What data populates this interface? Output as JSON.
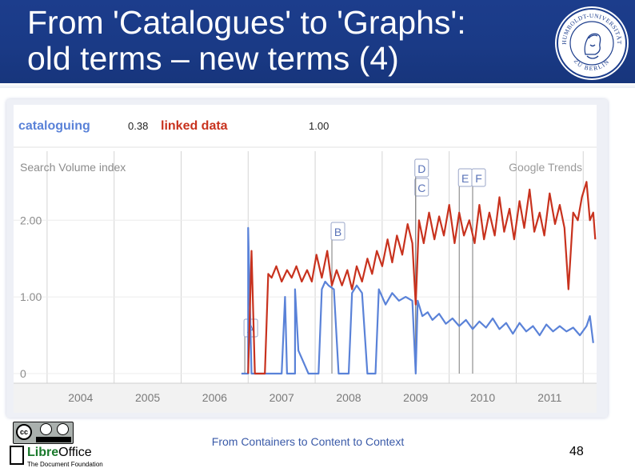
{
  "slide": {
    "title_line1": "From 'Catalogues' to 'Graphs':",
    "title_line2": "old terms – new terms (4)",
    "footer": "From Containers to Content to Context",
    "page_number": "48",
    "seal_text_top": "HUMBOLDT-UNIVERSITÄT",
    "seal_text_bottom": "ZU BERLIN",
    "license_text": "BY SA",
    "office_logo_name_part1": "Libre",
    "office_logo_name_part2": "Office",
    "office_logo_sub": "The Document Foundation"
  },
  "colors": {
    "header_bg": "#1c3d8c",
    "series_cataloguing": "#5a82d8",
    "series_linked_data": "#c8321e",
    "grid": "#d4d4d4"
  },
  "chart_data": {
    "type": "line",
    "legend": [
      {
        "name": "cataloguing",
        "value": "0.38"
      },
      {
        "name": "linked data",
        "value": "1.00"
      }
    ],
    "ylabel": "Search Volume index",
    "watermark": "Google Trends",
    "y_ticks": [
      "0",
      "1.00",
      "2.00"
    ],
    "x_ticks": [
      "2004",
      "2005",
      "2006",
      "2007",
      "2008",
      "2009",
      "2010",
      "2011"
    ],
    "ylim": [
      0,
      2.9
    ],
    "xlim": [
      2003.5,
      2012.2
    ],
    "grid": true,
    "annotations": [
      {
        "label": "A",
        "x": 2006.95
      },
      {
        "label": "B",
        "x": 2008.25
      },
      {
        "label": "C",
        "x": 2009.5
      },
      {
        "label": "D",
        "x": 2009.5
      },
      {
        "label": "E",
        "x": 2010.15
      },
      {
        "label": "F",
        "x": 2010.35
      }
    ],
    "series": [
      {
        "name": "cataloguing",
        "points": [
          [
            2006.9,
            0
          ],
          [
            2007.0,
            0
          ],
          [
            2007.0,
            1.9
          ],
          [
            2007.05,
            0
          ],
          [
            2007.2,
            0
          ],
          [
            2007.3,
            0
          ],
          [
            2007.5,
            0
          ],
          [
            2007.55,
            1.0
          ],
          [
            2007.58,
            0
          ],
          [
            2007.7,
            0
          ],
          [
            2007.7,
            1.1
          ],
          [
            2007.75,
            0.3
          ],
          [
            2007.9,
            0
          ],
          [
            2008.05,
            0
          ],
          [
            2008.1,
            1.1
          ],
          [
            2008.15,
            1.2
          ],
          [
            2008.2,
            1.15
          ],
          [
            2008.28,
            1.1
          ],
          [
            2008.35,
            0
          ],
          [
            2008.5,
            0
          ],
          [
            2008.55,
            1.05
          ],
          [
            2008.62,
            1.15
          ],
          [
            2008.7,
            1.05
          ],
          [
            2008.78,
            0
          ],
          [
            2008.9,
            0
          ],
          [
            2008.95,
            1.1
          ],
          [
            2009.05,
            0.9
          ],
          [
            2009.15,
            1.05
          ],
          [
            2009.25,
            0.95
          ],
          [
            2009.35,
            1.0
          ],
          [
            2009.45,
            0.95
          ],
          [
            2009.5,
            0
          ],
          [
            2009.53,
            0.95
          ],
          [
            2009.6,
            0.75
          ],
          [
            2009.68,
            0.8
          ],
          [
            2009.75,
            0.7
          ],
          [
            2009.85,
            0.78
          ],
          [
            2009.95,
            0.65
          ],
          [
            2010.05,
            0.72
          ],
          [
            2010.15,
            0.62
          ],
          [
            2010.25,
            0.7
          ],
          [
            2010.35,
            0.58
          ],
          [
            2010.45,
            0.68
          ],
          [
            2010.55,
            0.6
          ],
          [
            2010.65,
            0.72
          ],
          [
            2010.75,
            0.58
          ],
          [
            2010.85,
            0.66
          ],
          [
            2010.95,
            0.52
          ],
          [
            2011.05,
            0.66
          ],
          [
            2011.15,
            0.55
          ],
          [
            2011.25,
            0.62
          ],
          [
            2011.35,
            0.5
          ],
          [
            2011.45,
            0.64
          ],
          [
            2011.55,
            0.55
          ],
          [
            2011.65,
            0.62
          ],
          [
            2011.75,
            0.55
          ],
          [
            2011.85,
            0.6
          ],
          [
            2011.95,
            0.5
          ],
          [
            2012.05,
            0.62
          ],
          [
            2012.1,
            0.75
          ],
          [
            2012.15,
            0.4
          ]
        ]
      },
      {
        "name": "linked data",
        "points": [
          [
            2007.0,
            0
          ],
          [
            2007.05,
            1.6
          ],
          [
            2007.1,
            0
          ],
          [
            2007.25,
            0
          ],
          [
            2007.3,
            1.3
          ],
          [
            2007.35,
            1.25
          ],
          [
            2007.42,
            1.4
          ],
          [
            2007.5,
            1.2
          ],
          [
            2007.58,
            1.35
          ],
          [
            2007.65,
            1.25
          ],
          [
            2007.72,
            1.4
          ],
          [
            2007.8,
            1.2
          ],
          [
            2007.88,
            1.35
          ],
          [
            2007.95,
            1.2
          ],
          [
            2008.02,
            1.55
          ],
          [
            2008.1,
            1.25
          ],
          [
            2008.18,
            1.6
          ],
          [
            2008.25,
            1.15
          ],
          [
            2008.32,
            1.35
          ],
          [
            2008.4,
            1.15
          ],
          [
            2008.48,
            1.35
          ],
          [
            2008.55,
            1.1
          ],
          [
            2008.62,
            1.4
          ],
          [
            2008.7,
            1.2
          ],
          [
            2008.78,
            1.5
          ],
          [
            2008.85,
            1.3
          ],
          [
            2008.92,
            1.6
          ],
          [
            2009.0,
            1.4
          ],
          [
            2009.08,
            1.75
          ],
          [
            2009.15,
            1.45
          ],
          [
            2009.22,
            1.8
          ],
          [
            2009.3,
            1.55
          ],
          [
            2009.38,
            1.95
          ],
          [
            2009.45,
            1.7
          ],
          [
            2009.5,
            0.9
          ],
          [
            2009.55,
            2.0
          ],
          [
            2009.62,
            1.7
          ],
          [
            2009.7,
            2.1
          ],
          [
            2009.78,
            1.75
          ],
          [
            2009.85,
            2.05
          ],
          [
            2009.92,
            1.8
          ],
          [
            2010.0,
            2.2
          ],
          [
            2010.08,
            1.7
          ],
          [
            2010.15,
            2.1
          ],
          [
            2010.22,
            1.8
          ],
          [
            2010.3,
            2.0
          ],
          [
            2010.38,
            1.7
          ],
          [
            2010.45,
            2.2
          ],
          [
            2010.52,
            1.75
          ],
          [
            2010.6,
            2.1
          ],
          [
            2010.68,
            1.8
          ],
          [
            2010.75,
            2.3
          ],
          [
            2010.82,
            1.85
          ],
          [
            2010.9,
            2.15
          ],
          [
            2010.97,
            1.75
          ],
          [
            2011.05,
            2.25
          ],
          [
            2011.12,
            1.9
          ],
          [
            2011.2,
            2.4
          ],
          [
            2011.27,
            1.85
          ],
          [
            2011.35,
            2.1
          ],
          [
            2011.42,
            1.8
          ],
          [
            2011.5,
            2.35
          ],
          [
            2011.58,
            1.95
          ],
          [
            2011.65,
            2.2
          ],
          [
            2011.72,
            1.9
          ],
          [
            2011.78,
            1.1
          ],
          [
            2011.85,
            2.1
          ],
          [
            2011.92,
            2.0
          ],
          [
            2011.98,
            2.3
          ],
          [
            2012.05,
            2.5
          ],
          [
            2012.1,
            2.0
          ],
          [
            2012.15,
            2.1
          ],
          [
            2012.18,
            1.75
          ]
        ]
      }
    ]
  }
}
